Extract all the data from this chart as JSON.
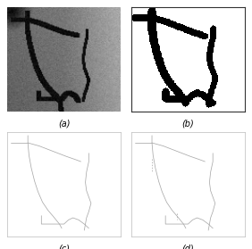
{
  "labels": [
    "(a)",
    "(b)",
    "(c)",
    "(d)"
  ],
  "label_fontsize": 7,
  "bg_color": "#ffffff",
  "figsize": [
    2.82,
    2.79
  ],
  "dpi": 100,
  "vessel_color": "#aaaaaa",
  "vessel_lw": 0.6,
  "main_vessel": {
    "x": [
      18,
      18,
      20,
      22,
      25,
      27,
      28,
      28,
      28,
      30,
      33,
      36,
      40,
      43,
      45,
      47,
      48
    ],
    "y": [
      5,
      12,
      20,
      30,
      40,
      50,
      58,
      65,
      72,
      78,
      84,
      87,
      90,
      90,
      90,
      90,
      90
    ]
  },
  "top_branch_left": {
    "x": [
      5,
      10,
      14,
      18
    ],
    "y": [
      12,
      12,
      12,
      12
    ]
  },
  "top_branch_right": {
    "x": [
      18,
      28,
      38,
      48,
      55,
      58
    ],
    "y": [
      12,
      14,
      18,
      22,
      24,
      25
    ]
  },
  "right_wavy": {
    "x": [
      70,
      70,
      68,
      67,
      68,
      70,
      72,
      72,
      70,
      68,
      67,
      66,
      66,
      67
    ],
    "y": [
      25,
      32,
      40,
      48,
      55,
      60,
      65,
      70,
      76,
      80,
      84,
      88,
      92,
      95
    ]
  },
  "bottom_step": {
    "x": [
      28,
      28,
      35,
      40,
      44,
      48,
      52,
      55,
      58,
      62,
      65
    ],
    "y": [
      84,
      88,
      88,
      88,
      88,
      88,
      84,
      82,
      83,
      86,
      90
    ]
  },
  "bifurc_segment": {
    "x": [
      27,
      27,
      27,
      27
    ],
    "y": [
      50,
      55,
      60,
      65
    ]
  }
}
